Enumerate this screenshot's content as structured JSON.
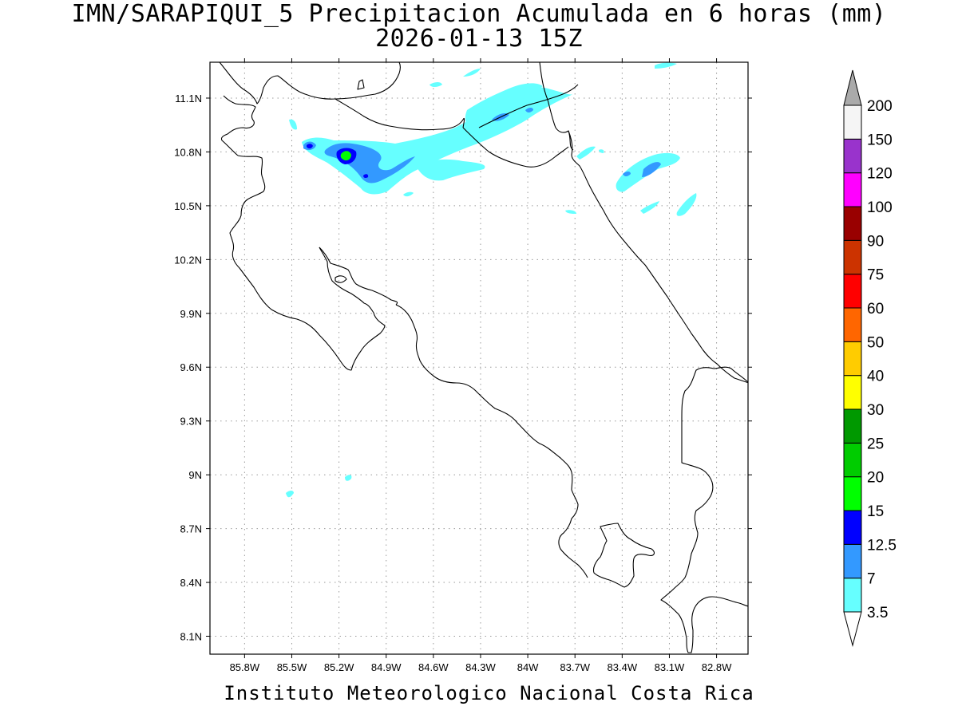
{
  "title": {
    "line1": "IMN/SARAPIQUI_5 Precipitacion Acumulada en 6 horas (mm)",
    "line2": "2026-01-13 15Z"
  },
  "footer": "Instituto Meteorologico Nacional Costa Rica",
  "map": {
    "lon_range": [
      -86.02,
      -82.6
    ],
    "lat_range": [
      8.0,
      11.3
    ],
    "x_ticks": [
      {
        "value": -85.8,
        "label": "85.8W"
      },
      {
        "value": -85.5,
        "label": "85.5W"
      },
      {
        "value": -85.2,
        "label": "85.2W"
      },
      {
        "value": -84.9,
        "label": "84.9W"
      },
      {
        "value": -84.6,
        "label": "84.6W"
      },
      {
        "value": -84.3,
        "label": "84.3W"
      },
      {
        "value": -84.0,
        "label": "84W"
      },
      {
        "value": -83.7,
        "label": "83.7W"
      },
      {
        "value": -83.4,
        "label": "83.4W"
      },
      {
        "value": -83.1,
        "label": "83.1W"
      },
      {
        "value": -82.8,
        "label": "82.8W"
      }
    ],
    "y_ticks": [
      {
        "value": 11.1,
        "label": "11.1N"
      },
      {
        "value": 10.8,
        "label": "10.8N"
      },
      {
        "value": 10.5,
        "label": "10.5N"
      },
      {
        "value": 10.2,
        "label": "10.2N"
      },
      {
        "value": 9.9,
        "label": "9.9N"
      },
      {
        "value": 9.6,
        "label": "9.6N"
      },
      {
        "value": 9.3,
        "label": "9.3N"
      },
      {
        "value": 9.0,
        "label": "9N"
      },
      {
        "value": 8.7,
        "label": "8.7N"
      },
      {
        "value": 8.4,
        "label": "8.4N"
      },
      {
        "value": 8.1,
        "label": "8.1N"
      }
    ],
    "grid": "dotted"
  },
  "colorbar": {
    "levels": [
      {
        "label": "3.5",
        "color": "#66ffff"
      },
      {
        "label": "7",
        "color": "#3399ff"
      },
      {
        "label": "12.5",
        "color": "#0000ff"
      },
      {
        "label": "15",
        "color": "#00ff00"
      },
      {
        "label": "20",
        "color": "#00cc00"
      },
      {
        "label": "25",
        "color": "#009900"
      },
      {
        "label": "30",
        "color": "#ffff00"
      },
      {
        "label": "40",
        "color": "#ffcc00"
      },
      {
        "label": "50",
        "color": "#ff6600"
      },
      {
        "label": "60",
        "color": "#ff0000"
      },
      {
        "label": "75",
        "color": "#cc3300"
      },
      {
        "label": "90",
        "color": "#990000"
      },
      {
        "label": "100",
        "color": "#ff00ff"
      },
      {
        "label": "120",
        "color": "#9933cc"
      },
      {
        "label": "150",
        "color": "#f5f5f5"
      },
      {
        "label": "200",
        "color": "#999999"
      }
    ],
    "top_arrow_color": "#aaaaaa",
    "bottom_arrow_color": "#ffffff"
  }
}
